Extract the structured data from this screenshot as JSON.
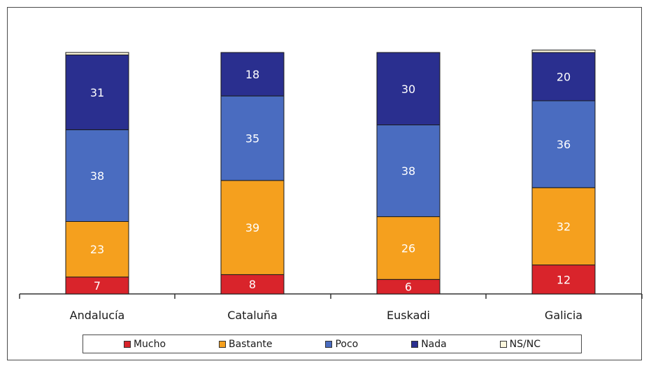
{
  "chart_data": {
    "type": "bar",
    "stacked": true,
    "categories": [
      "Andalucía",
      "Cataluña",
      "Euskadi",
      "Galicia"
    ],
    "series": [
      {
        "name": "Mucho",
        "color": "#d9242b",
        "values": [
          7,
          8,
          6,
          12
        ]
      },
      {
        "name": "Bastante",
        "color": "#f5a01e",
        "values": [
          23,
          39,
          26,
          32
        ]
      },
      {
        "name": "Poco",
        "color": "#4a6cc0",
        "values": [
          38,
          35,
          38,
          36
        ]
      },
      {
        "name": "Nada",
        "color": "#2a2f8f",
        "values": [
          31,
          18,
          30,
          20
        ]
      },
      {
        "name": "NS/NC",
        "color": "#fbf6dc",
        "values": [
          1,
          0,
          0,
          1
        ]
      }
    ],
    "label_series": [
      "Mucho",
      "Bastante",
      "Poco",
      "Nada"
    ],
    "ylim": [
      0,
      100
    ],
    "grid": false,
    "legend": "bottom",
    "title": "",
    "xlabel": "",
    "ylabel": ""
  }
}
